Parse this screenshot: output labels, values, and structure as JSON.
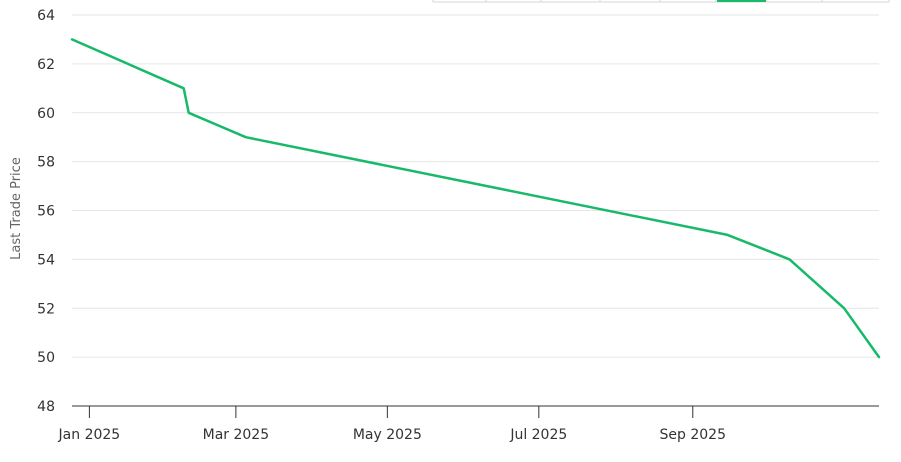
{
  "chart_data": {
    "type": "line",
    "title": "",
    "xlabel": "",
    "ylabel": "Last Trade Price",
    "x_ticks": [
      "Jan 2025",
      "Mar 2025",
      "May 2025",
      "Jul 2025",
      "Sep 2025"
    ],
    "y_ticks": [
      48,
      50,
      52,
      54,
      56,
      58,
      60,
      62,
      64
    ],
    "ylim": [
      48,
      64
    ],
    "xlim": [
      "2024-12-25",
      "2025-11-15"
    ],
    "grid": true,
    "legend": "none",
    "series": [
      {
        "color": "#19b96a",
        "x": [
          "2024-12-25",
          "2025-02-08",
          "2025-02-10",
          "2025-03-05",
          "2025-09-15",
          "2025-10-10",
          "2025-11-01",
          "2025-11-15"
        ],
        "y": [
          63,
          61,
          60,
          59,
          55,
          54,
          52,
          50
        ]
      }
    ]
  },
  "range_selector": {
    "active_color": "#19b96a"
  }
}
